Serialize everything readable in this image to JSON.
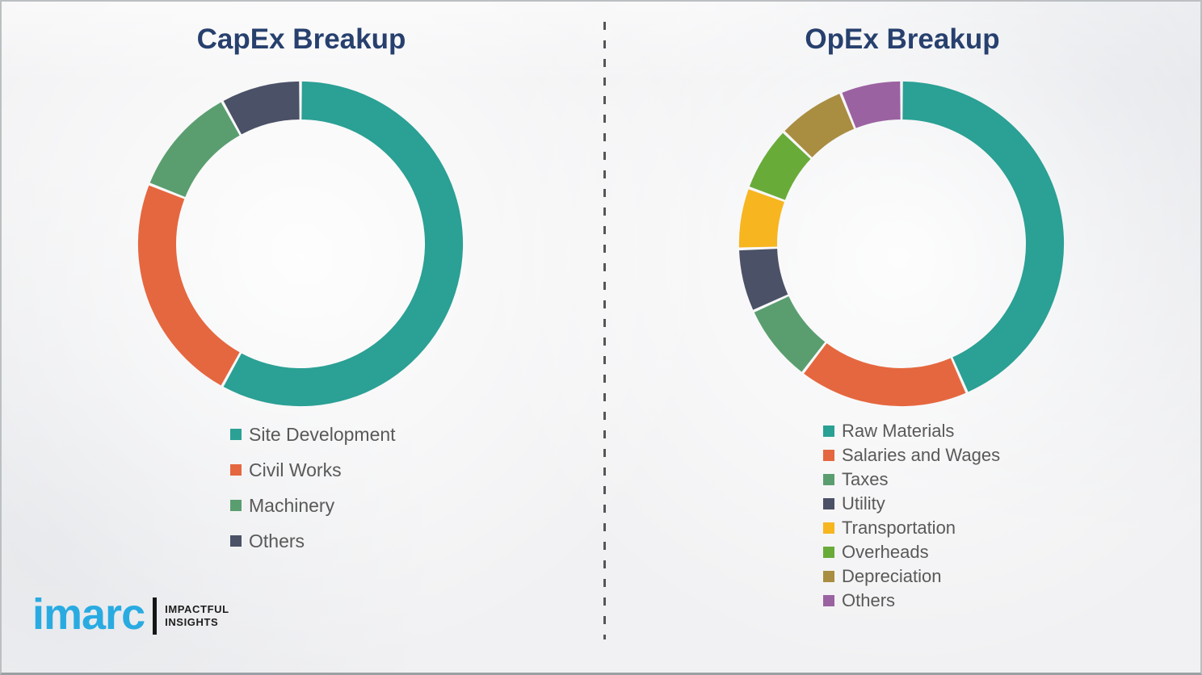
{
  "page": {
    "background_color": "#f1f1f3",
    "divider_style": "vertical-dashed-gray-line"
  },
  "chart_data": [
    {
      "type": "pie",
      "subtype": "donut",
      "title": "CapEx Breakup",
      "start_angle": "top",
      "direction": "clockwise",
      "legend_position": "below-left",
      "labels": [
        "Site Development",
        "Civil Works",
        "Machinery",
        "Others"
      ],
      "values": [
        58,
        23,
        11,
        8
      ],
      "colors": [
        "#2ba094",
        "#e5673f",
        "#5a9e70",
        "#4b5166"
      ]
    },
    {
      "type": "pie",
      "subtype": "donut",
      "title": "OpEx Breakup",
      "start_angle": "top",
      "direction": "clockwise",
      "legend_position": "below-left",
      "labels": [
        "Raw Materials",
        "Salaries and Wages",
        "Taxes",
        "Utility",
        "Transportation",
        "Overheads",
        "Depreciation",
        "Others"
      ],
      "values": [
        43.4,
        17,
        7.8,
        6.3,
        6.1,
        6.5,
        6.8,
        6.1
      ],
      "colors": [
        "#2ba094",
        "#e5673f",
        "#5a9e70",
        "#4b5166",
        "#f7b520",
        "#69ab39",
        "#a98d40",
        "#9b62a1"
      ]
    }
  ],
  "styles": {
    "title_color": "#27406e",
    "legend_text_color": "#595959",
    "segment_gap_color": "#ffffff"
  },
  "logo": {
    "brand": "imarc",
    "brand_color": "#29abe2",
    "tagline_line1": "IMPACTFUL",
    "tagline_line2": "INSIGHTS"
  }
}
